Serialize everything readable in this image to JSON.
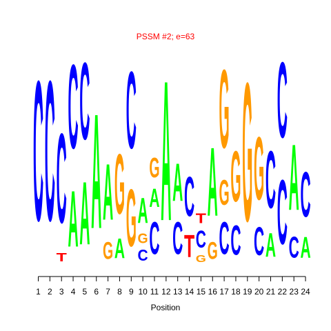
{
  "chart_data": {
    "type": "sequence-logo",
    "title": "PSSM #2; e=63",
    "xlabel": "Position",
    "ylabel": "",
    "positions": [
      "1",
      "2",
      "3",
      "4",
      "5",
      "6",
      "7",
      "8",
      "9",
      "10",
      "11",
      "12",
      "13",
      "14",
      "15",
      "16",
      "17",
      "18",
      "19",
      "20",
      "21",
      "22",
      "23",
      "24"
    ],
    "alphabet": [
      "A",
      "C",
      "G",
      "T"
    ],
    "colors": {
      "A": "#00ff00",
      "C": "#0000ff",
      "G": "#ff9900",
      "T": "#ff0000",
      "title": "#ff0000"
    },
    "columns": [
      {
        "position": 1,
        "letters": [
          {
            "base": "C",
            "height": 1.0
          }
        ]
      },
      {
        "position": 2,
        "letters": [
          {
            "base": "C",
            "height": 1.0
          }
        ]
      },
      {
        "position": 3,
        "letters": [
          {
            "base": "T",
            "height": 0.06
          },
          {
            "base": "C",
            "height": 0.64
          }
        ]
      },
      {
        "position": 4,
        "letters": [
          {
            "base": "A",
            "height": 0.4
          },
          {
            "base": "C",
            "height": 0.6
          }
        ]
      },
      {
        "position": 5,
        "letters": [
          {
            "base": "A",
            "height": 0.45
          },
          {
            "base": "C",
            "height": 0.55
          }
        ]
      },
      {
        "position": 6,
        "letters": [
          {
            "base": "A",
            "height": 0.82
          }
        ]
      },
      {
        "position": 7,
        "letters": [
          {
            "base": "G",
            "height": 0.12
          },
          {
            "base": "A",
            "height": 0.4
          }
        ]
      },
      {
        "position": 8,
        "letters": [
          {
            "base": "A",
            "height": 0.14
          },
          {
            "base": "G",
            "height": 0.43
          }
        ]
      },
      {
        "position": 9,
        "letters": [
          {
            "base": "G",
            "height": 0.41
          },
          {
            "base": "C",
            "height": 0.55
          }
        ]
      },
      {
        "position": 10,
        "letters": [
          {
            "base": "C",
            "height": 0.08
          },
          {
            "base": "G",
            "height": 0.07
          },
          {
            "base": "A",
            "height": 0.18
          }
        ]
      },
      {
        "position": 11,
        "letters": [
          {
            "base": "C",
            "height": 0.23
          },
          {
            "base": "A",
            "height": 0.13
          },
          {
            "base": "G",
            "height": 0.14
          }
        ]
      },
      {
        "position": 12,
        "letters": [
          {
            "base": "A",
            "height": 1.0
          }
        ]
      },
      {
        "position": 13,
        "letters": [
          {
            "base": "C",
            "height": 0.23
          },
          {
            "base": "A",
            "height": 0.27
          }
        ]
      },
      {
        "position": 14,
        "letters": [
          {
            "base": "T",
            "height": 0.16
          },
          {
            "base": "C",
            "height": 0.28
          }
        ]
      },
      {
        "position": 15,
        "letters": [
          {
            "base": "G",
            "height": 0.05
          },
          {
            "base": "C",
            "height": 0.12
          },
          {
            "base": "T",
            "height": 0.07
          }
        ]
      },
      {
        "position": 16,
        "letters": [
          {
            "base": "G",
            "height": 0.12
          },
          {
            "base": "A",
            "height": 0.49
          }
        ]
      },
      {
        "position": 17,
        "letters": [
          {
            "base": "C",
            "height": 0.23
          },
          {
            "base": "G",
            "height": 0.18
          },
          {
            "base": "G",
            "height": 0.56
          }
        ]
      },
      {
        "position": 18,
        "letters": [
          {
            "base": "C",
            "height": 0.21
          },
          {
            "base": "G",
            "height": 0.36
          }
        ]
      },
      {
        "position": 19,
        "letters": [
          {
            "base": "G",
            "height": 0.99
          }
        ]
      },
      {
        "position": 20,
        "letters": [
          {
            "base": "C",
            "height": 0.2
          },
          {
            "base": "G",
            "height": 0.45
          }
        ]
      },
      {
        "position": 21,
        "letters": [
          {
            "base": "A",
            "height": 0.17
          },
          {
            "base": "C",
            "height": 0.41
          }
        ]
      },
      {
        "position": 22,
        "letters": [
          {
            "base": "C",
            "height": 0.46
          },
          {
            "base": "C",
            "height": 0.54
          }
        ]
      },
      {
        "position": 23,
        "letters": [
          {
            "base": "C",
            "height": 0.15
          },
          {
            "base": "A",
            "height": 0.47
          }
        ]
      },
      {
        "position": 24,
        "letters": [
          {
            "base": "A",
            "height": 0.15
          },
          {
            "base": "C",
            "height": 0.32
          }
        ]
      }
    ]
  }
}
